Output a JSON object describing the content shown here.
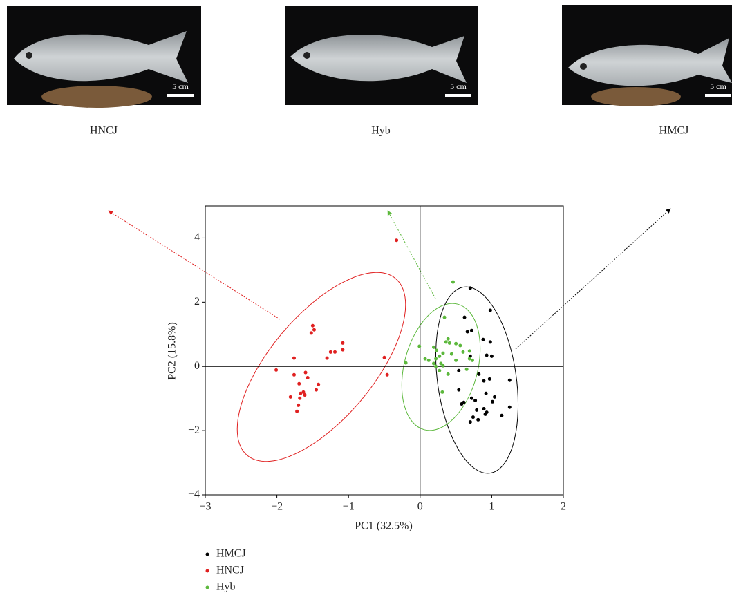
{
  "photos": [
    {
      "caption": "HNCJ",
      "scale": "5 cm"
    },
    {
      "caption": "Hyb",
      "scale": "5 cm"
    },
    {
      "caption": "HMCJ",
      "scale": "5 cm"
    }
  ],
  "chart_data": {
    "type": "scatter",
    "x_label": "PC1 (32.5%)",
    "y_label": "PC2 (15.8%)",
    "xlim": [
      -3,
      2
    ],
    "ylim": [
      -4,
      5
    ],
    "xticks": [
      {
        "value": -3,
        "label": "−3"
      },
      {
        "value": -2,
        "label": "−2"
      },
      {
        "value": -1,
        "label": "−1"
      },
      0,
      1,
      2
    ],
    "yticks": [
      {
        "value": -4,
        "label": "−4"
      },
      {
        "value": -2,
        "label": "−2"
      },
      0,
      2,
      4
    ],
    "series": [
      {
        "name": "HMCJ",
        "color": "#000000",
        "x": [
          0.7,
          0.98,
          0.62,
          0.66,
          0.72,
          0.88,
          0.98,
          0.93,
          1.0,
          0.7,
          0.54,
          0.82,
          0.97,
          0.89,
          1.25,
          0.72,
          0.61,
          0.58,
          0.77,
          0.92,
          1.04,
          1.01,
          1.25,
          0.79,
          0.89,
          0.93,
          0.91,
          0.74,
          0.81,
          0.7,
          1.14,
          0.54
        ],
        "values": [
          2.44,
          1.75,
          1.53,
          1.08,
          1.12,
          0.84,
          0.76,
          0.35,
          0.32,
          0.32,
          -0.13,
          -0.24,
          -0.39,
          -0.45,
          -0.43,
          -0.99,
          -1.12,
          -1.17,
          -1.06,
          -0.84,
          -0.95,
          -1.1,
          -1.27,
          -1.36,
          -1.32,
          -1.43,
          -1.49,
          -1.58,
          -1.66,
          -1.73,
          -1.53,
          -0.73
        ]
      },
      {
        "name": "HNCJ",
        "color": "#e02020",
        "x": [
          -0.33,
          -1.5,
          -1.48,
          -1.52,
          -1.08,
          -1.08,
          -1.19,
          -1.25,
          -1.3,
          -0.5,
          -0.46,
          -1.76,
          -2.01,
          -1.76,
          -1.6,
          -1.57,
          -1.69,
          -1.42,
          -1.45,
          -1.63,
          -1.67,
          -1.61,
          -1.68,
          -1.81,
          -1.7,
          -1.72
        ],
        "values": [
          3.93,
          1.27,
          1.14,
          1.04,
          0.73,
          0.52,
          0.45,
          0.45,
          0.26,
          0.28,
          -0.26,
          0.26,
          -0.11,
          -0.26,
          -0.19,
          -0.35,
          -0.54,
          -0.56,
          -0.73,
          -0.8,
          -0.84,
          -0.89,
          -0.99,
          -0.95,
          -1.21,
          -1.4
        ]
      },
      {
        "name": "Hyb",
        "color": "#5cb83c",
        "x": [
          0.46,
          0.34,
          -0.01,
          -0.2,
          0.07,
          0.12,
          0.19,
          0.23,
          0.36,
          0.39,
          0.41,
          0.5,
          0.56,
          0.6,
          0.69,
          0.73,
          0.69,
          0.32,
          0.27,
          0.22,
          0.19,
          0.29,
          0.32,
          0.22,
          0.27,
          0.39,
          0.65,
          0.5,
          0.31,
          0.44
        ],
        "values": [
          2.63,
          1.53,
          0.63,
          0.11,
          0.24,
          0.19,
          0.6,
          0.5,
          0.76,
          0.86,
          0.73,
          0.71,
          0.65,
          0.45,
          0.48,
          0.19,
          0.24,
          0.41,
          0.32,
          0.24,
          0.09,
          0.09,
          0.02,
          0.0,
          -0.13,
          -0.24,
          -0.09,
          0.19,
          -0.8,
          0.39
        ]
      }
    ]
  }
}
